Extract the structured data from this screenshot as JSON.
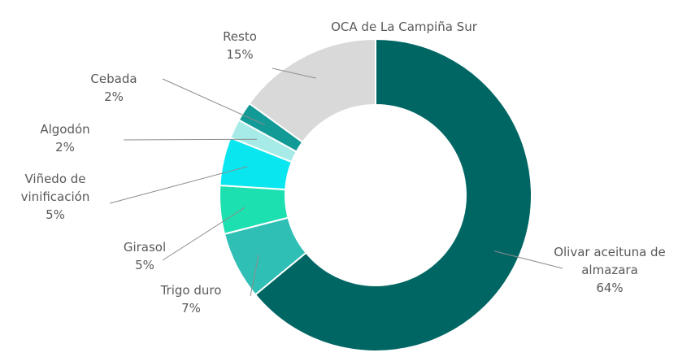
{
  "chart_data": {
    "type": "donut",
    "title": "OCA de La Campiña Sur",
    "categories": [
      "Olivar aceituna de almazara",
      "Trigo duro",
      "Girasol",
      "Viñedo de vinificación",
      "Algodón",
      "Cebada",
      "Resto"
    ],
    "values": [
      64,
      7,
      5,
      5,
      2,
      2,
      15
    ],
    "value_labels": [
      "64%",
      "7%",
      "5%",
      "5%",
      "2%",
      "2%",
      "15%"
    ],
    "colors": [
      "#006664",
      "#2fbfb5",
      "#1de0b0",
      "#0ae6f0",
      "#a6ebe7",
      "#129a96",
      "#d9d9d9"
    ]
  }
}
